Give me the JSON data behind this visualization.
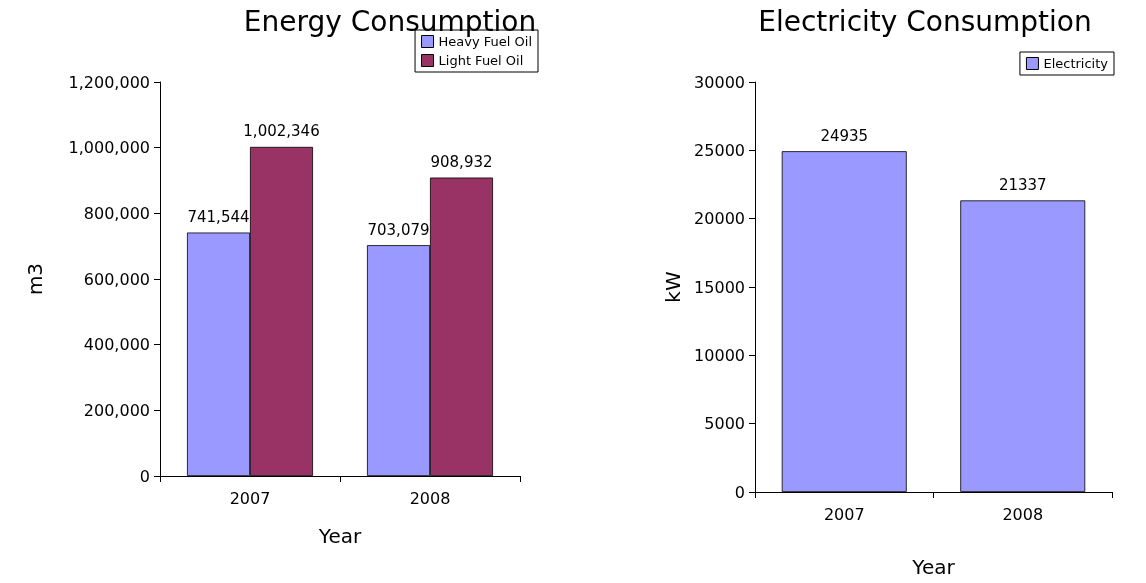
{
  "chart_data": [
    {
      "type": "bar",
      "title": "Energy Consumption",
      "xlabel": "Year",
      "ylabel": "m3",
      "categories": [
        "2007",
        "2008"
      ],
      "series": [
        {
          "name": "Heavy Fuel Oil",
          "color": "#9999ff",
          "values": [
            741544,
            703079
          ],
          "value_labels": [
            "741,544",
            "703,079"
          ]
        },
        {
          "name": "Light Fuel Oil",
          "color": "#993366",
          "values": [
            1002346,
            908932
          ],
          "value_labels": [
            "1,002,346",
            "908,932"
          ]
        }
      ],
      "ylim": [
        0,
        1200000
      ],
      "yticks": [
        {
          "value": 0,
          "label": "0"
        },
        {
          "value": 200000,
          "label": "200,000"
        },
        {
          "value": 400000,
          "label": "400,000"
        },
        {
          "value": 600000,
          "label": "600,000"
        },
        {
          "value": 800000,
          "label": "800,000"
        },
        {
          "value": 1000000,
          "label": "1,000,000"
        },
        {
          "value": 1200000,
          "label": "1,200,000"
        }
      ],
      "grid": false,
      "legend": "top right"
    },
    {
      "type": "bar",
      "title": "Electricity Consumption",
      "xlabel": "Year",
      "ylabel": "kW",
      "categories": [
        "2007",
        "2008"
      ],
      "series": [
        {
          "name": "Electricity",
          "color": "#9999ff",
          "values": [
            24935,
            21337
          ]
        }
      ],
      "ylim": [
        0,
        30000
      ],
      "yticks": [
        0,
        5000,
        10000,
        15000,
        20000,
        25000,
        30000
      ],
      "data_labels": true,
      "grid": false,
      "legend": "top right"
    }
  ]
}
